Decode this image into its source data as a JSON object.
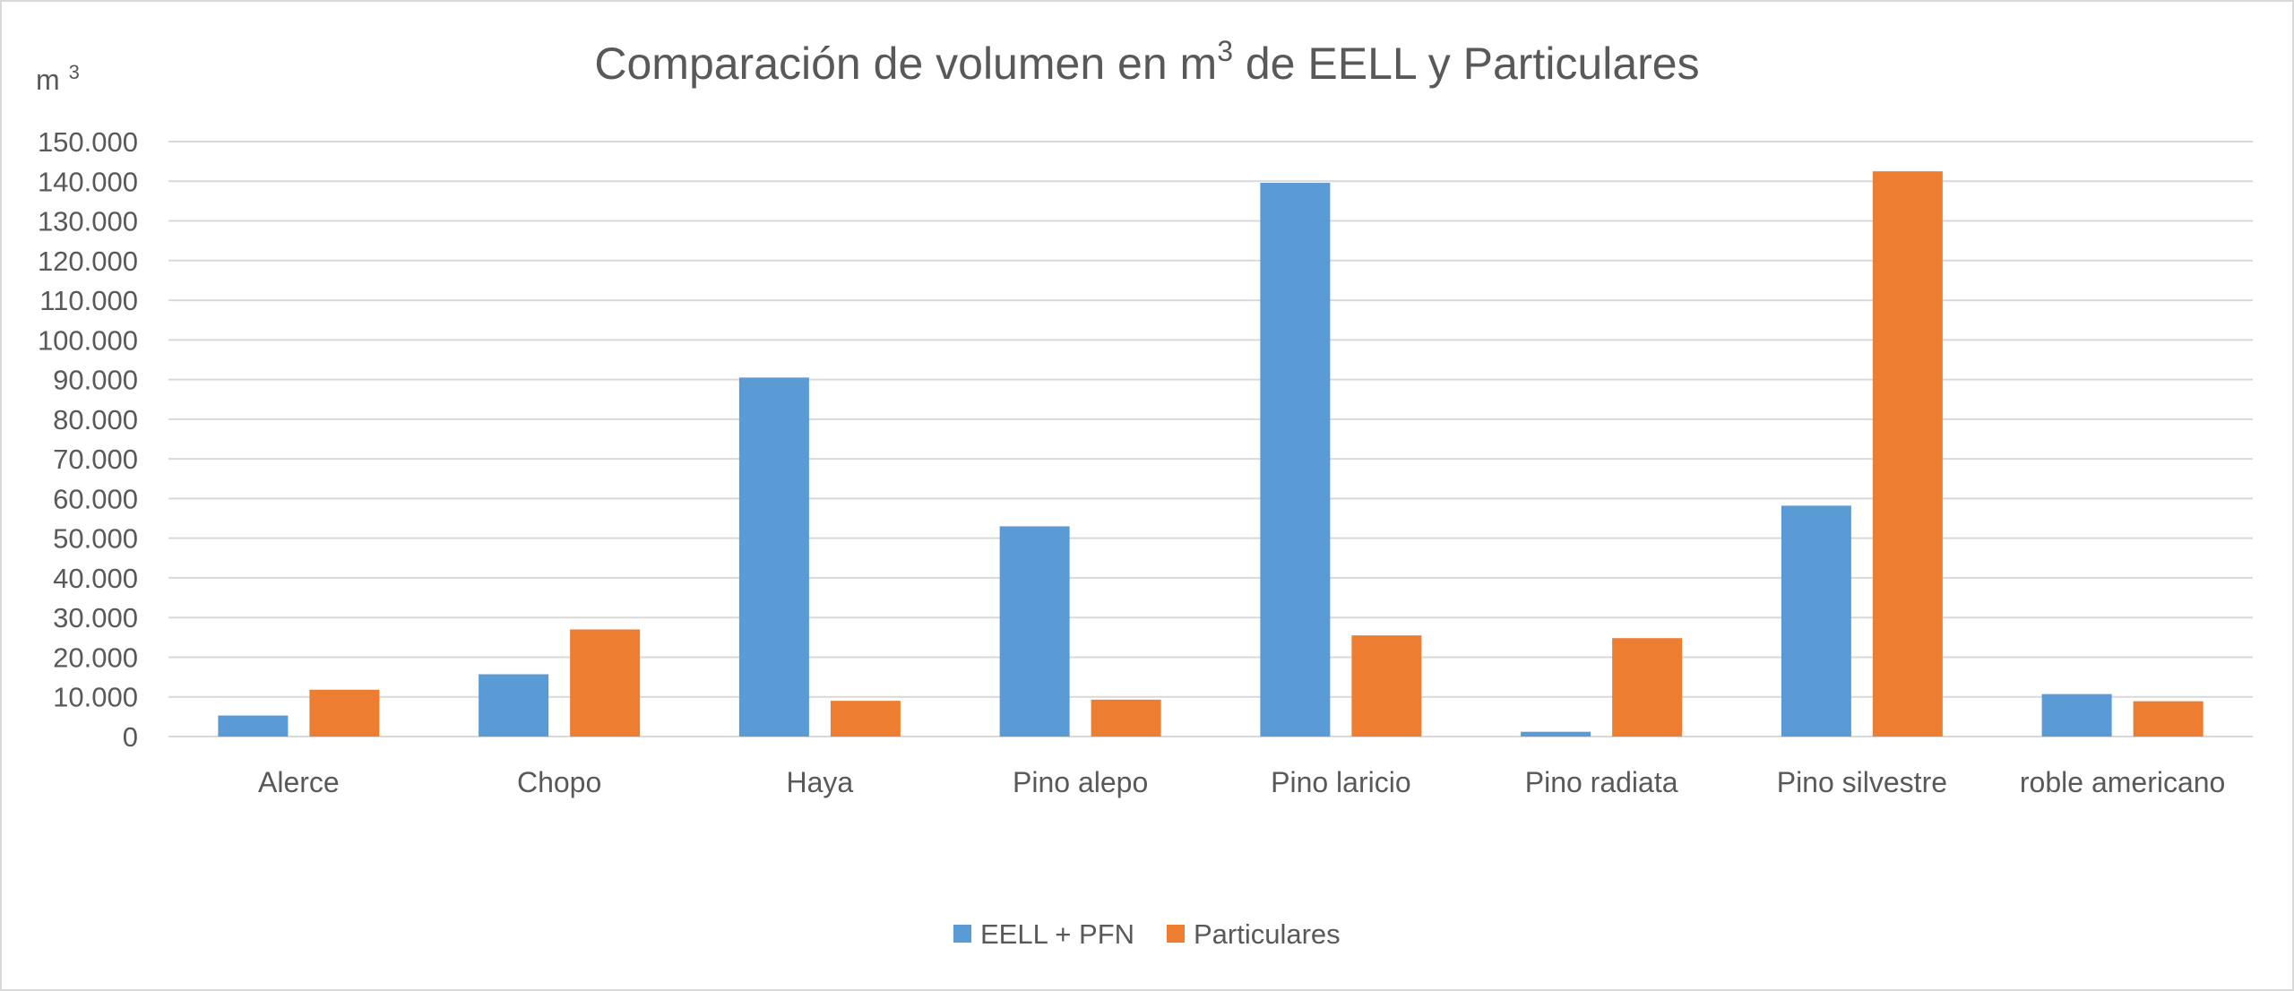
{
  "chart_data": {
    "type": "bar",
    "title": "Comparación de volumen en m",
    "title_sup": "3",
    "title_rest": " de EELL y Particulares",
    "ylabel": "m",
    "ylabel_sup": "3",
    "xlabel": "",
    "categories": [
      "Alerce",
      "Chopo",
      "Haya",
      "Pino alepo",
      "Pino laricio",
      "Pino radiata",
      "Pino silvestre",
      "roble americano"
    ],
    "series": [
      {
        "name": "EELL + PFN",
        "color": "#5B9BD5",
        "values": [
          5300,
          15700,
          90500,
          53000,
          139600,
          1200,
          58200,
          10700
        ]
      },
      {
        "name": "Particulares",
        "color": "#ED7D31",
        "values": [
          11800,
          27000,
          9000,
          9300,
          25500,
          24800,
          142500,
          8900
        ]
      }
    ],
    "ylim": [
      0,
      150000
    ],
    "yticks": [
      0,
      10000,
      20000,
      30000,
      40000,
      50000,
      60000,
      70000,
      80000,
      90000,
      100000,
      110000,
      120000,
      130000,
      140000,
      150000
    ],
    "ytick_labels": [
      "0",
      "10.000",
      "20.000",
      "30.000",
      "40.000",
      "50.000",
      "60.000",
      "70.000",
      "80.000",
      "90.000",
      "100.000",
      "110.000",
      "120.000",
      "130.000",
      "140.000",
      "150.000"
    ],
    "grid": true,
    "legend_position": "bottom"
  }
}
